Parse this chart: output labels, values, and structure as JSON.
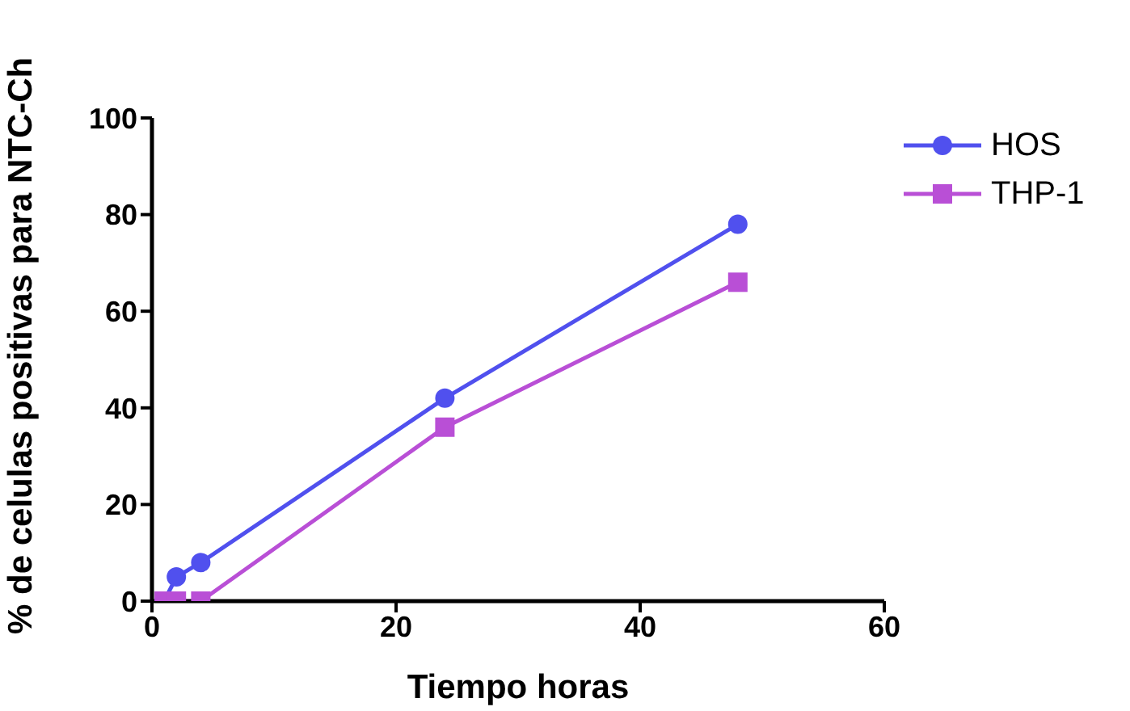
{
  "chart_data": {
    "type": "line",
    "xlabel": "Tiempo horas",
    "ylabel": "% de celulas positivas para NTC-Ch",
    "xlim": [
      0,
      60
    ],
    "xticks": [
      0,
      20,
      40,
      60
    ],
    "ylim": [
      0,
      100
    ],
    "yticks": [
      0,
      20,
      40,
      60,
      80,
      100
    ],
    "grid": false,
    "legend": "top right",
    "line_style": "solid",
    "series": [
      {
        "name": "HOS",
        "color": "#5050ee",
        "marker": "circle",
        "x": [
          1,
          2,
          4,
          24,
          48
        ],
        "values": [
          0,
          5,
          8,
          42,
          78
        ]
      },
      {
        "name": "THP-1",
        "color": "#b94fd6",
        "marker": "square",
        "x": [
          1,
          2,
          4,
          24,
          48
        ],
        "values": [
          0,
          0,
          0,
          36,
          66
        ]
      }
    ]
  }
}
